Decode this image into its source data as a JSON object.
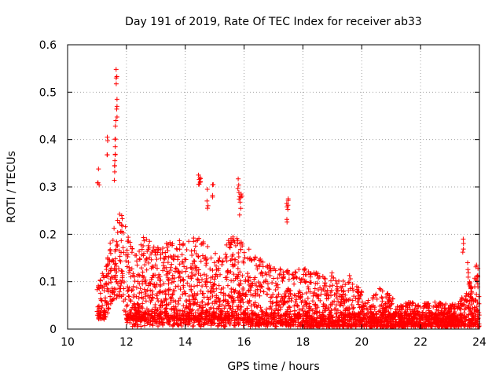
{
  "chart_data": {
    "type": "scatter",
    "title": "Day 191 of 2019, Rate Of TEC Index for receiver ab33",
    "xlabel": "GPS time / hours",
    "ylabel": "ROTI / TECUs",
    "xlim": [
      10,
      24
    ],
    "ylim": [
      0,
      0.6
    ],
    "xticks": [
      10,
      12,
      14,
      16,
      18,
      20,
      22,
      24
    ],
    "xtick_labels": [
      "10",
      "12",
      "14",
      "16",
      "18",
      "20",
      "22",
      "24"
    ],
    "yticks": [
      0,
      0.1,
      0.2,
      0.3,
      0.4,
      0.5,
      0.6
    ],
    "ytick_labels": [
      "0",
      "0.1",
      "0.2",
      "0.3",
      "0.4",
      "0.5",
      "0.6"
    ],
    "grid": true,
    "marker": "+",
    "color": "#ff0000",
    "series": [
      {
        "name": "ROTI",
        "notable_points": [
          [
            11.65,
            0.548
          ],
          [
            11.68,
            0.485
          ],
          [
            11.64,
            0.44
          ],
          [
            11.62,
            0.385
          ],
          [
            11.35,
            0.405
          ],
          [
            11.05,
            0.338
          ],
          [
            11.6,
            0.345
          ],
          [
            14.45,
            0.325
          ],
          [
            14.5,
            0.32
          ],
          [
            14.95,
            0.305
          ],
          [
            14.75,
            0.295
          ],
          [
            15.8,
            0.317
          ],
          [
            15.9,
            0.285
          ],
          [
            15.85,
            0.28
          ],
          [
            17.5,
            0.275
          ],
          [
            17.45,
            0.265
          ],
          [
            23.45,
            0.19
          ],
          [
            23.6,
            0.14
          ],
          [
            23.9,
            0.135
          ],
          [
            23.95,
            0.128
          ]
        ],
        "envelope": {
          "x": [
            11.0,
            11.3,
            11.5,
            11.8,
            12.0,
            12.3,
            12.6,
            13.0,
            13.3,
            13.6,
            14.0,
            14.3,
            14.6,
            15.0,
            15.3,
            15.6,
            16.0,
            16.3,
            16.6,
            17.0,
            17.3,
            17.6,
            18.0,
            18.3,
            18.6,
            19.0,
            19.3,
            19.6,
            20.0,
            20.3,
            20.6,
            21.0,
            21.3,
            21.6,
            22.0,
            22.3,
            22.6,
            23.0,
            23.3,
            23.6,
            23.9
          ],
          "upper": [
            0.1,
            0.13,
            0.2,
            0.25,
            0.22,
            0.17,
            0.2,
            0.17,
            0.18,
            0.2,
            0.18,
            0.2,
            0.19,
            0.16,
            0.17,
            0.2,
            0.18,
            0.16,
            0.15,
            0.14,
            0.13,
            0.12,
            0.13,
            0.12,
            0.12,
            0.12,
            0.11,
            0.12,
            0.08,
            0.06,
            0.09,
            0.07,
            0.05,
            0.06,
            0.05,
            0.06,
            0.06,
            0.05,
            0.06,
            0.1,
            0.11
          ],
          "lower": [
            0.02,
            0.02,
            0.06,
            0.07,
            0.02,
            0.02,
            0.02,
            0.02,
            0.02,
            0.02,
            0.02,
            0.02,
            0.02,
            0.02,
            0.02,
            0.02,
            0.02,
            0.01,
            0.01,
            0.01,
            0.01,
            0.005,
            0.005,
            0.005,
            0.005,
            0.005,
            0.005,
            0.005,
            0.005,
            0.005,
            0.005,
            0.005,
            0.005,
            0.005,
            0.005,
            0.005,
            0.005,
            0.005,
            0.005,
            0.005,
            0.005
          ]
        }
      }
    ]
  }
}
